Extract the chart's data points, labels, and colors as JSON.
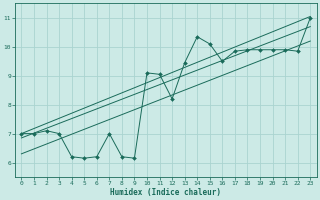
{
  "xlabel": "Humidex (Indice chaleur)",
  "ylabel": "",
  "bg_color": "#cceae6",
  "grid_color": "#aad4d0",
  "line_color": "#1a6b5a",
  "xlim": [
    -0.5,
    23.5
  ],
  "ylim": [
    5.5,
    11.5
  ],
  "xticks": [
    0,
    1,
    2,
    3,
    4,
    5,
    6,
    7,
    8,
    9,
    10,
    11,
    12,
    13,
    14,
    15,
    16,
    17,
    18,
    19,
    20,
    21,
    22,
    23
  ],
  "yticks": [
    6,
    7,
    8,
    9,
    10,
    11
  ],
  "data_x": [
    0,
    1,
    2,
    3,
    4,
    5,
    6,
    7,
    8,
    9,
    10,
    11,
    12,
    13,
    14,
    15,
    16,
    17,
    18,
    19,
    20,
    21,
    22,
    23
  ],
  "data_y": [
    7.0,
    7.0,
    7.1,
    7.0,
    6.2,
    6.15,
    6.2,
    7.0,
    6.2,
    6.15,
    9.1,
    9.05,
    8.2,
    9.45,
    10.35,
    10.1,
    9.5,
    9.85,
    9.9,
    9.9,
    9.9,
    9.9,
    9.85,
    11.0
  ],
  "trend1_x": [
    0,
    23
  ],
  "trend1_y": [
    7.0,
    11.05
  ],
  "trend2_x": [
    0,
    23
  ],
  "trend2_y": [
    6.85,
    10.7
  ],
  "trend3_x": [
    0,
    23
  ],
  "trend3_y": [
    6.3,
    10.2
  ]
}
